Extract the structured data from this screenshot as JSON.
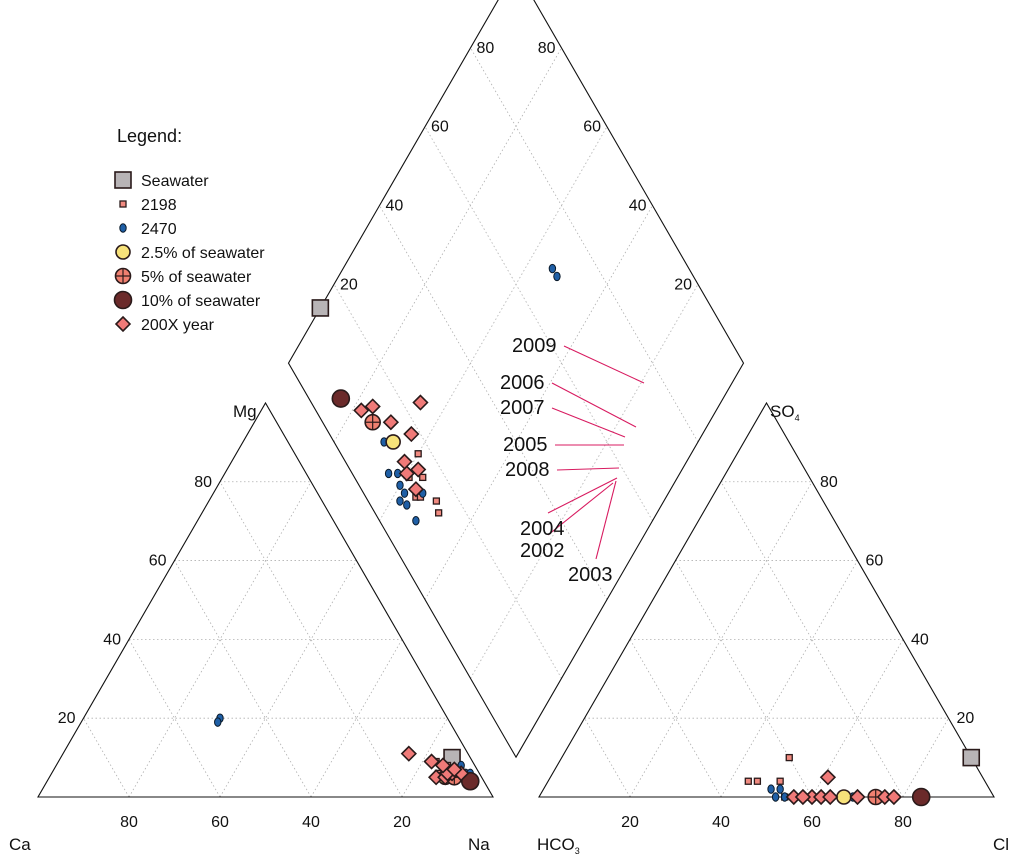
{
  "chart_data": {
    "type": "scatter",
    "subtype": "piper-trilinear",
    "legend_title": "Legend:",
    "legend_position": "top-left",
    "grid": true,
    "axes": {
      "cation_triangle": {
        "left": "Ca",
        "right": "Na",
        "top": "Mg",
        "ticks": [
          "20",
          "40",
          "60",
          "80"
        ]
      },
      "anion_triangle": {
        "left": "HCO",
        "left_subscript": "3",
        "right": "Cl",
        "top": "SO",
        "top_subscript": "4",
        "ticks": [
          "20",
          "40",
          "60",
          "80"
        ]
      },
      "diamond": {
        "ticks": [
          "20",
          "40",
          "60",
          "80"
        ]
      }
    },
    "colors": {
      "seawater": "#b8b4b6",
      "s2198": "#f08a80",
      "s2470": "#1f5fa6",
      "pct2_5": "#f7e27a",
      "pct5": "#f08070",
      "pct10": "#6b2a2a",
      "year": "#f07a78",
      "year_line": "#d81b60"
    },
    "series": [
      {
        "key": "seawater",
        "name": "Seawater",
        "marker": "square",
        "points": [
          {
            "cation": [
              4,
              86,
              10
            ],
            "anion": [
              0,
              90,
              10
            ]
          }
        ]
      },
      {
        "key": "s2198",
        "name": "2198",
        "marker": "small-square",
        "points": [
          {
            "cation": [
              6,
              86,
              8
            ],
            "anion": [
              52,
              44,
              4
            ]
          },
          {
            "cation": [
              7,
              85,
              8
            ],
            "anion": [
              50,
              46,
              4
            ]
          },
          {
            "cation": [
              5,
              89,
              6
            ],
            "anion": [
              45,
              51,
              4
            ]
          },
          {
            "cation": [
              6,
              88,
              6
            ],
            "anion": [
              41,
              59,
              0
            ]
          },
          {
            "cation": [
              9,
              85,
              6
            ],
            "anion": [
              44,
              56,
              0
            ]
          },
          {
            "cation": [
              8,
              83,
              9
            ],
            "anion": [
              40,
              50,
              10
            ]
          },
          {
            "cation": [
              7,
              88,
              5
            ],
            "anion": [
              46,
              54,
              0
            ]
          }
        ]
      },
      {
        "key": "s2470",
        "name": "2470",
        "marker": "small-ellipse",
        "points": [
          {
            "cation": [
              4,
              91,
              5
            ],
            "anion": [
              42,
              58,
              0
            ]
          },
          {
            "cation": [
              3,
              91,
              6
            ],
            "anion": [
              40,
              60,
              0
            ]
          },
          {
            "cation": [
              5,
              90,
              5
            ],
            "anion": [
              38,
              62,
              0
            ]
          },
          {
            "cation": [
              2,
              92,
              6
            ],
            "anion": [
              36,
              64,
              0
            ]
          },
          {
            "cation": [
              3,
              92,
              5
            ],
            "anion": [
              44,
              56,
              0
            ]
          },
          {
            "cation": [
              4,
              92,
              4
            ],
            "anion": [
              48,
              52,
              0
            ]
          },
          {
            "cation": [
              2,
              93,
              5
            ],
            "anion": [
              42,
              58,
              0
            ]
          },
          {
            "cation": [
              50,
              30,
              20
            ],
            "anion": [
              48,
              50,
              2
            ]
          },
          {
            "cation": [
              51,
              30,
              19
            ],
            "anion": [
              46,
              52,
              2
            ]
          },
          {
            "cation": [
              3,
              89,
              8
            ],
            "anion": [
              31,
              69,
              0
            ]
          },
          {
            "cation": [
              6,
              87,
              7
            ],
            "anion": [
              46,
              54,
              0
            ]
          }
        ]
      },
      {
        "key": "pct2_5",
        "name": "2.5% of seawater",
        "marker": "circle",
        "points": [
          {
            "cation": [
              8,
              87,
              5
            ],
            "anion": [
              33,
              67,
              0
            ]
          }
        ]
      },
      {
        "key": "pct5",
        "name": "5% of seawater",
        "marker": "circle-cross",
        "points": [
          {
            "cation": [
              6,
              89,
              5
            ],
            "anion": [
              26,
              74,
              0
            ]
          }
        ]
      },
      {
        "key": "pct10",
        "name": "10% of seawater",
        "marker": "large-circle",
        "points": [
          {
            "cation": [
              3,
              93,
              4
            ],
            "anion": [
              16,
              84,
              0
            ]
          }
        ]
      },
      {
        "key": "year",
        "name": "200X year",
        "marker": "diamond",
        "points": [
          {
            "cation": [
              10,
              85,
              5
            ],
            "anion": [
              30,
              70,
              0
            ]
          },
          {
            "cation": [
              8,
              87,
              5
            ],
            "anion": [
              24,
              76,
              0
            ]
          },
          {
            "cation": [
              6,
              88,
              6
            ],
            "anion": [
              40,
              60,
              0
            ]
          },
          {
            "cation": [
              7,
              87,
              6
            ],
            "anion": [
              38,
              62,
              0
            ]
          },
          {
            "cation": [
              4,
              90,
              6
            ],
            "anion": [
              22,
              78,
              0
            ]
          },
          {
            "cation": [
              13,
              76,
              11
            ],
            "anion": [
              34,
              61,
              5
            ]
          },
          {
            "cation": [
              5,
              88,
              7
            ],
            "anion": [
              44,
              56,
              0
            ]
          },
          {
            "cation": [
              9,
              82,
              9
            ],
            "anion": [
              36,
              64,
              0
            ]
          },
          {
            "cation": [
              7,
              85,
              8
            ],
            "anion": [
              42,
              58,
              0
            ]
          }
        ]
      }
    ],
    "annotations": [
      "2009",
      "2006",
      "2007",
      "2005",
      "2008",
      "2004",
      "2002",
      "2003"
    ]
  }
}
